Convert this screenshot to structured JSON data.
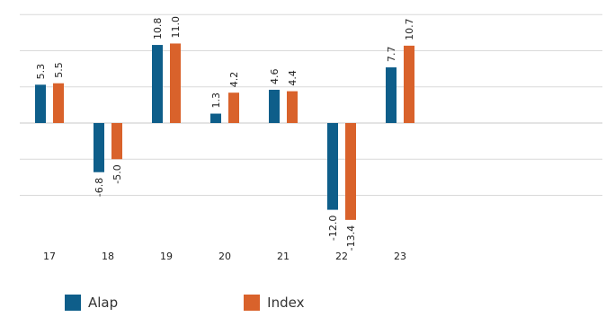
{
  "chart_data": {
    "type": "bar",
    "categories": [
      "17",
      "18",
      "19",
      "20",
      "21",
      "22",
      "23"
    ],
    "series": [
      {
        "name": "Alap",
        "color": "#0e5e8a",
        "values": [
          5.3,
          -6.8,
          10.8,
          1.3,
          4.6,
          -12.0,
          7.7
        ]
      },
      {
        "name": "Index",
        "color": "#d9622b",
        "values": [
          5.5,
          -5.0,
          11.0,
          4.2,
          4.4,
          -13.4,
          10.7
        ]
      }
    ],
    "ylim": [
      -15,
      15
    ],
    "y_tick_step": 5,
    "grid": true,
    "legend_position": "bottom-left"
  }
}
